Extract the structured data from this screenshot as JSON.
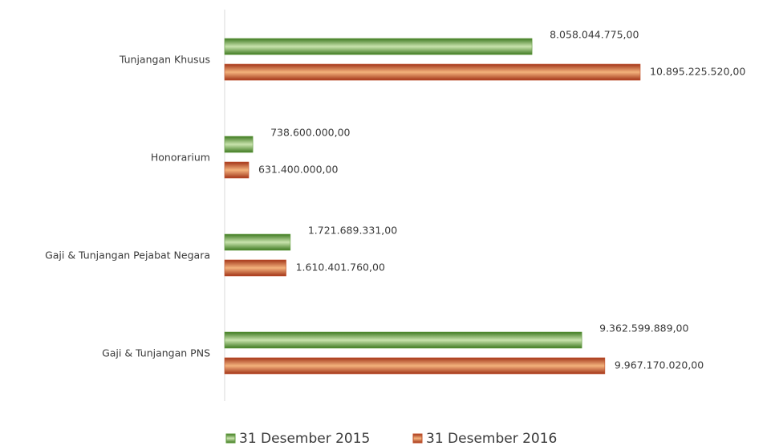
{
  "chart_data": {
    "type": "barh",
    "categories": [
      "Tunjangan Khusus",
      "Honorarium",
      "Gaji & Tunjangan Pejabat Negara",
      "Gaji  & Tunjangan PNS"
    ],
    "series": [
      {
        "name": "31 Desember 2015",
        "color": "#5e9a3a",
        "values": [
          8058044775,
          738600000,
          1721689331,
          9362599889
        ],
        "value_labels": [
          "8.058.044.775,00",
          "738.600.000,00",
          "1.721.689.331,00",
          "9.362.599.889,00"
        ]
      },
      {
        "name": "31 Desember 2016",
        "color": "#c2502a",
        "values": [
          10895225520,
          631400000,
          1610401760,
          9967170020
        ],
        "value_labels": [
          "10.895.225.520,00",
          "631.400.000,00",
          "1.610.401.760,00",
          "9.967.170.020,00"
        ]
      }
    ],
    "legend": "bottom"
  }
}
